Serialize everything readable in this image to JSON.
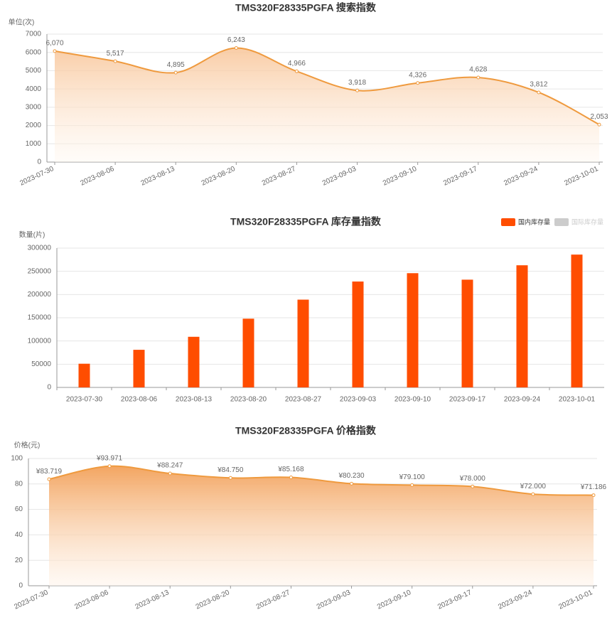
{
  "chart_data": [
    {
      "type": "line",
      "title": "TMS320F28335PGFA 搜索指数",
      "y_label": "单位(次)",
      "categories": [
        "2023-07-30",
        "2023-08-06",
        "2023-08-13",
        "2023-08-20",
        "2023-08-27",
        "2023-09-03",
        "2023-09-10",
        "2023-09-17",
        "2023-09-24",
        "2023-10-01"
      ],
      "values": [
        6070,
        5517,
        4895,
        6243,
        4966,
        3918,
        4326,
        4628,
        3812,
        2053
      ],
      "value_labels": [
        "6,070",
        "5,517",
        "4,895",
        "6,243",
        "4,966",
        "3,918",
        "4,326",
        "4,628",
        "3,812",
        "2,053"
      ],
      "color": "#ef9a3e",
      "ylim": [
        0,
        7000
      ],
      "yticks": [
        0,
        1000,
        2000,
        3000,
        4000,
        5000,
        6000,
        7000
      ],
      "grid": true
    },
    {
      "type": "bar",
      "title": "TMS320F28335PGFA 库存量指数",
      "y_label": "数量(片)",
      "categories": [
        "2023-07-30",
        "2023-08-06",
        "2023-08-13",
        "2023-08-20",
        "2023-08-27",
        "2023-09-03",
        "2023-09-10",
        "2023-09-17",
        "2023-09-24",
        "2023-10-01"
      ],
      "series": [
        {
          "name": "国内库存量",
          "color": "#ff4d00",
          "values": [
            51000,
            81000,
            109000,
            148000,
            189000,
            228000,
            246000,
            232000,
            263000,
            286000
          ]
        }
      ],
      "legend_inactive": [
        {
          "name": "国际库存量",
          "color": "#cccccc"
        }
      ],
      "legend": "top-right",
      "ylim": [
        0,
        300000
      ],
      "yticks": [
        0,
        50000,
        100000,
        150000,
        200000,
        250000,
        300000
      ],
      "grid": true
    },
    {
      "type": "line",
      "title": "TMS320F28335PGFA 价格指数",
      "y_label": "价格(元)",
      "categories": [
        "2023-07-30",
        "2023-08-06",
        "2023-08-13",
        "2023-08-20",
        "2023-08-27",
        "2023-09-03",
        "2023-09-10",
        "2023-09-17",
        "2023-09-24",
        "2023-10-01"
      ],
      "values": [
        83.719,
        93.971,
        88.247,
        84.75,
        85.168,
        80.23,
        79.1,
        78.0,
        72.0,
        71.186
      ],
      "value_labels": [
        "¥83.719",
        "¥93.971",
        "¥88.247",
        "¥84.750",
        "¥85.168",
        "¥80.230",
        "¥79.100",
        "¥78.000",
        "¥72.000",
        "¥71.186"
      ],
      "color": "#ef9a3e",
      "ylim": [
        0,
        100
      ],
      "yticks": [
        0,
        20,
        40,
        60,
        80,
        100
      ],
      "grid": true
    }
  ]
}
